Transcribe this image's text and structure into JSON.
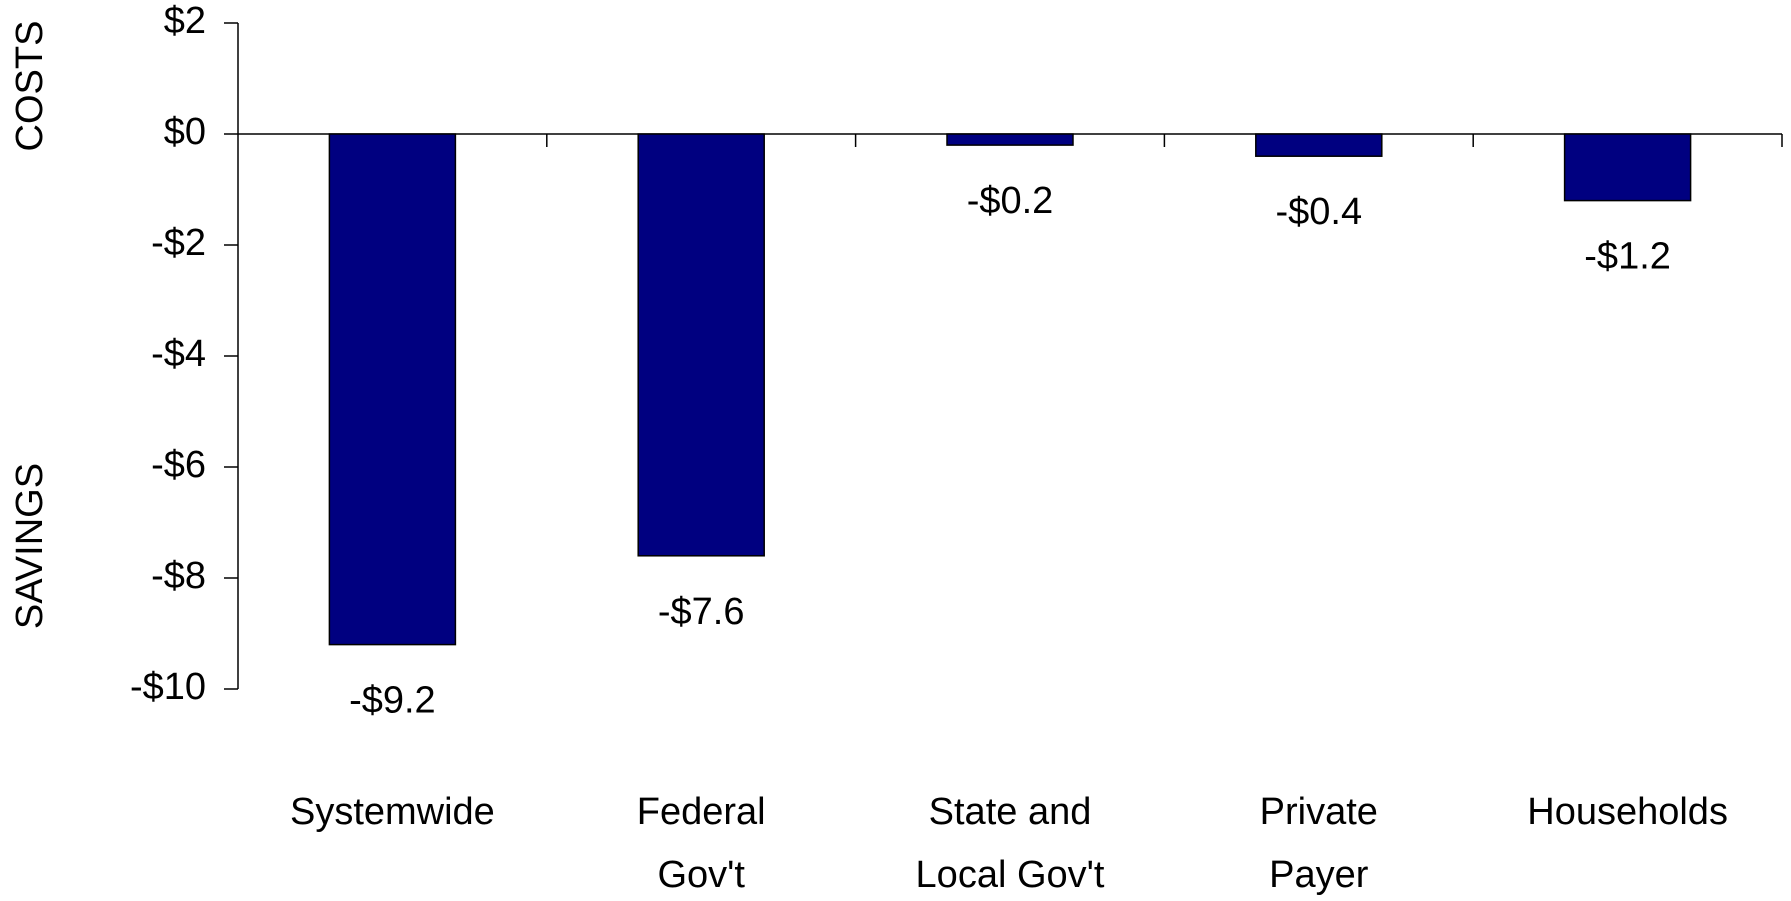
{
  "chart_data": {
    "type": "bar",
    "side_labels": [
      "COSTS",
      "SAVINGS"
    ],
    "categories": [
      [
        "Systemwide"
      ],
      [
        "Federal",
        "Gov't"
      ],
      [
        "State and",
        "Local Gov't"
      ],
      [
        "Private",
        "Payer"
      ],
      [
        "Households"
      ]
    ],
    "values": [
      -9.2,
      -7.6,
      -0.2,
      -0.4,
      -1.2
    ],
    "value_labels": [
      "-$9.2",
      "-$7.6",
      "-$0.2",
      "-$0.4",
      "-$1.2"
    ],
    "color": "#000080",
    "ylim": [
      -10,
      2
    ],
    "yticks": [
      {
        "value": 2,
        "label": "$2"
      },
      {
        "value": 0,
        "label": "$0"
      },
      {
        "value": -2,
        "label": "-$2"
      },
      {
        "value": -4,
        "label": "-$4"
      },
      {
        "value": -6,
        "label": "-$6"
      },
      {
        "value": -8,
        "label": "-$8"
      },
      {
        "value": -10,
        "label": "-$10"
      }
    ]
  }
}
